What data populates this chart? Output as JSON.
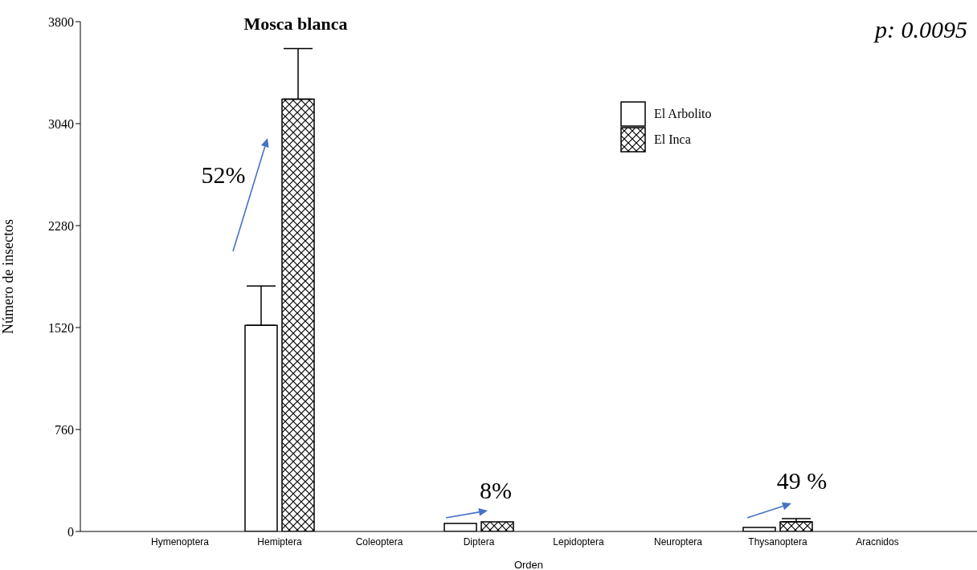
{
  "chart_data": {
    "type": "bar",
    "categories": [
      "Hymenoptera",
      "Hemiptera",
      "Coleoptera",
      "Diptera",
      "Lepidoptera",
      "Neuroptera",
      "Thysanoptera",
      "Aracnidos"
    ],
    "series": [
      {
        "name": "El Arbolito",
        "color": "#000000",
        "values": [
          0,
          1537,
          0,
          60,
          0,
          0,
          30,
          0
        ],
        "errors": [
          null,
          [
            1537,
            1830
          ],
          null,
          null,
          null,
          null,
          null,
          null
        ]
      },
      {
        "name": "El Inca",
        "color": "#000000",
        "values": [
          0,
          3223,
          0,
          72,
          0,
          0,
          72,
          0
        ],
        "errors": [
          null,
          [
            3223,
            3600
          ],
          null,
          null,
          null,
          null,
          [
            72,
            96
          ],
          null
        ]
      }
    ],
    "xlabel": "Orden",
    "ylabel": "Número de insectos",
    "ylim": [
      0,
      3800
    ],
    "yticks": [
      0,
      760,
      1520,
      2280,
      3040,
      3800
    ],
    "annotations": [
      "Mosca blanca",
      "52%",
      "8%",
      "49 %",
      "p: 0.0095"
    ],
    "legend": "top right"
  }
}
